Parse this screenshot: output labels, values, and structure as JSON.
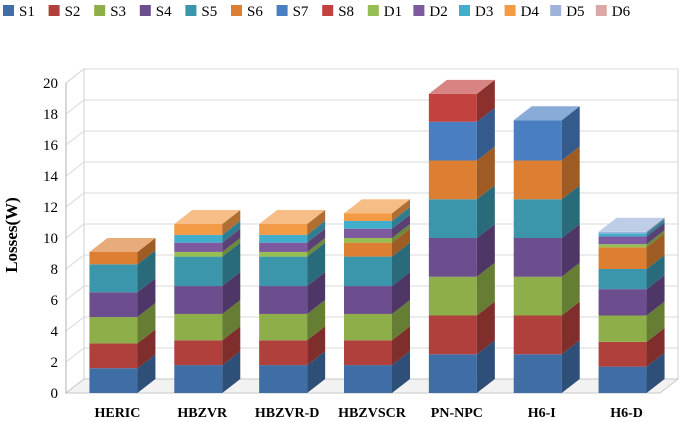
{
  "chart_data": {
    "type": "bar",
    "stacked": true,
    "style": "3d",
    "title": "",
    "xlabel": "",
    "ylabel": "Losses(W)",
    "ylim": [
      0,
      20
    ],
    "yticks": [
      0,
      2,
      4,
      6,
      8,
      10,
      12,
      14,
      16,
      18,
      20
    ],
    "grid": true,
    "legend_position": "top",
    "categories": [
      "HERIC",
      "HBZVR",
      "HBZVR-D",
      "HBZVSCR",
      "PN-NPC",
      "H6-I",
      "H6-D"
    ],
    "series": [
      {
        "name": "S1",
        "color": "#3F6EA6",
        "values": [
          1.6,
          1.8,
          1.8,
          1.8,
          2.5,
          2.5,
          1.7
        ]
      },
      {
        "name": "S2",
        "color": "#B0403C",
        "values": [
          1.6,
          1.6,
          1.6,
          1.6,
          2.5,
          2.5,
          1.6
        ]
      },
      {
        "name": "S3",
        "color": "#8DAE48",
        "values": [
          1.7,
          1.7,
          1.7,
          1.7,
          2.5,
          2.5,
          1.7
        ]
      },
      {
        "name": "S4",
        "color": "#6C4D8D",
        "values": [
          1.6,
          1.8,
          1.8,
          1.8,
          2.5,
          2.5,
          1.7
        ]
      },
      {
        "name": "S5",
        "color": "#3B95AB",
        "values": [
          1.8,
          1.9,
          1.9,
          1.9,
          2.5,
          2.5,
          1.3
        ]
      },
      {
        "name": "S6",
        "color": "#DC7F32",
        "values": [
          0.8,
          0,
          0,
          0.9,
          2.5,
          2.5,
          1.4
        ]
      },
      {
        "name": "S7",
        "color": "#4A7EC2",
        "values": [
          0,
          0,
          0,
          0,
          2.5,
          2.6,
          0
        ]
      },
      {
        "name": "S8",
        "color": "#C24240",
        "values": [
          0,
          0,
          0,
          0,
          1.8,
          0,
          0
        ]
      },
      {
        "name": "D1",
        "color": "#96BE52",
        "values": [
          0,
          0.3,
          0.3,
          0.3,
          0,
          0,
          0.2
        ]
      },
      {
        "name": "D2",
        "color": "#7D5AA0",
        "values": [
          0,
          0.6,
          0.6,
          0.6,
          0,
          0,
          0.5
        ]
      },
      {
        "name": "D3",
        "color": "#42AECB",
        "values": [
          0,
          0.5,
          0.5,
          0.5,
          0,
          0,
          0.2
        ]
      },
      {
        "name": "D4",
        "color": "#F39A45",
        "values": [
          0,
          0.7,
          0.7,
          0.5,
          0,
          0,
          0
        ]
      },
      {
        "name": "D5",
        "color": "#9DB3DA",
        "values": [
          0,
          0,
          0,
          0,
          0,
          0,
          0.1
        ]
      },
      {
        "name": "D6",
        "color": "#DCA7A7",
        "values": [
          0,
          0,
          0,
          0,
          0,
          0,
          0
        ]
      }
    ]
  }
}
